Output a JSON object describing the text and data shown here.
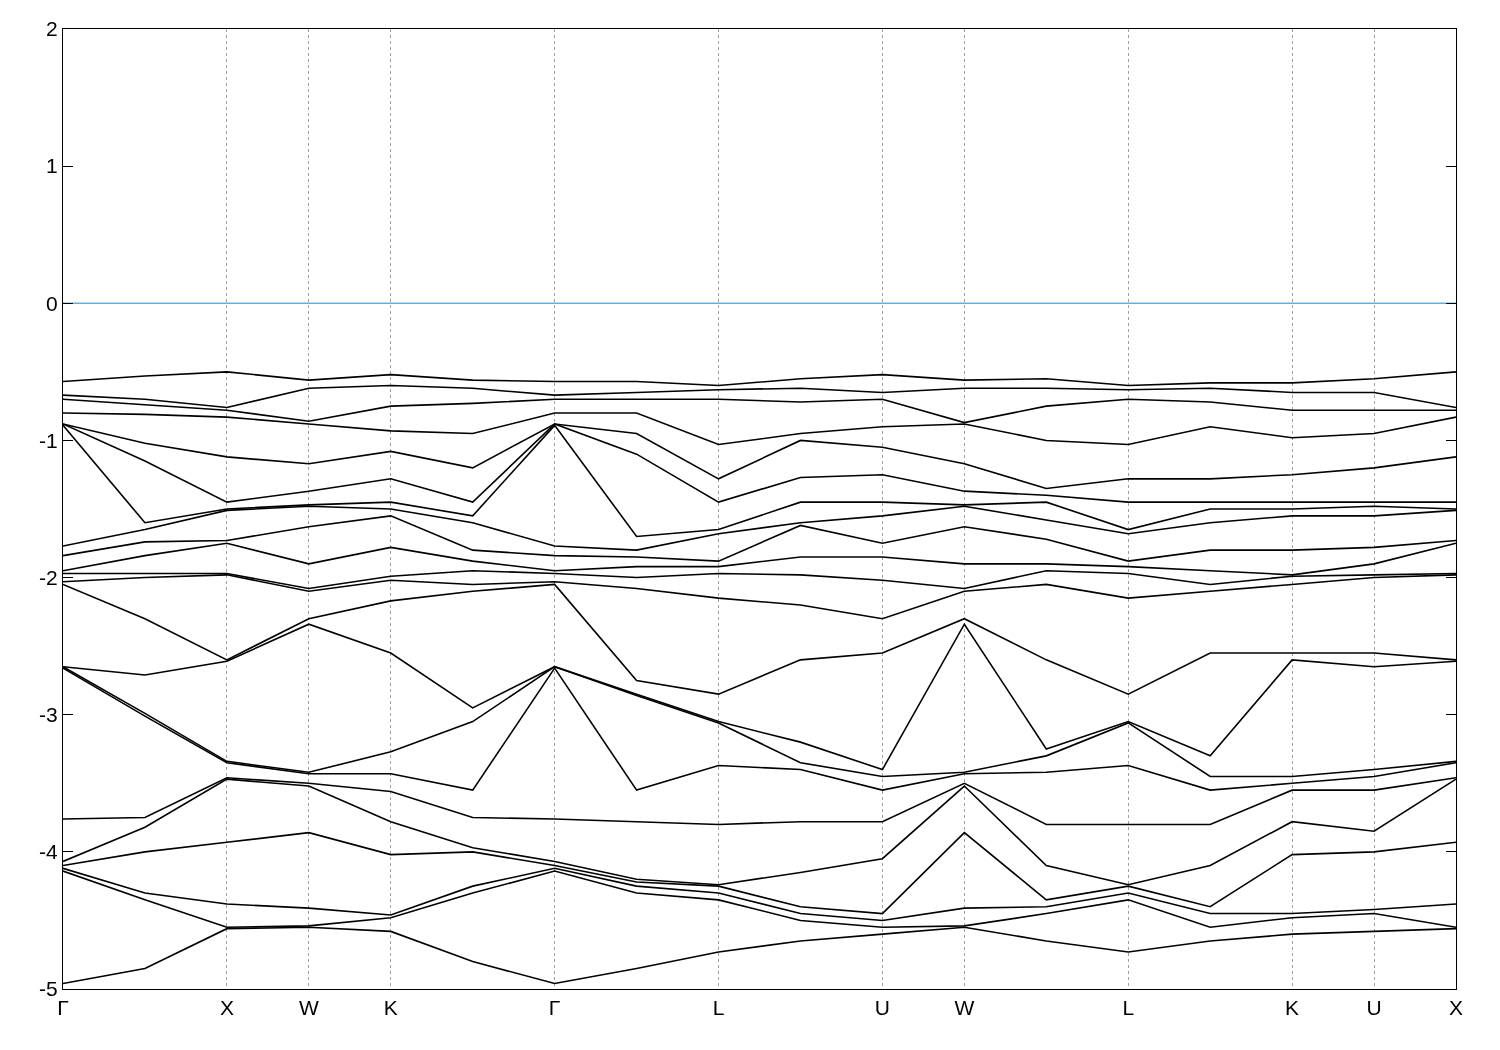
{
  "chart_data": {
    "type": "line",
    "categories": [
      "Γ",
      null,
      "X",
      "W",
      "K",
      null,
      "Γ",
      null,
      "L",
      null,
      "U",
      "W",
      null,
      "L",
      null,
      "K",
      "U",
      "X"
    ],
    "ylim": [
      -5,
      2
    ],
    "yticks": [
      -5,
      -4,
      -3,
      -2,
      -1,
      0,
      1,
      2
    ],
    "grid": "x",
    "marker": "none",
    "line_style": "solid",
    "ref_lines": [
      {
        "axis": "y",
        "value": 0,
        "color": "#56b4e9"
      }
    ],
    "series": [
      {
        "color": "#000000",
        "values": [
          -0.57,
          -0.53,
          -0.5,
          -0.56,
          -0.52,
          -0.56,
          -0.57,
          -0.57,
          -0.6,
          -0.55,
          -0.52,
          -0.56,
          -0.55,
          -0.6,
          -0.58,
          -0.58,
          -0.55,
          -0.5
        ]
      },
      {
        "color": "#000000",
        "values": [
          -0.67,
          -0.7,
          -0.76,
          -0.62,
          -0.6,
          -0.62,
          -0.67,
          -0.65,
          -0.63,
          -0.62,
          -0.65,
          -0.62,
          -0.62,
          -0.63,
          -0.62,
          -0.65,
          -0.65,
          -0.76
        ]
      },
      {
        "color": "#000000",
        "values": [
          -0.7,
          -0.74,
          -0.78,
          -0.86,
          -0.75,
          -0.73,
          -0.7,
          -0.7,
          -0.7,
          -0.72,
          -0.7,
          -0.87,
          -0.75,
          -0.7,
          -0.72,
          -0.78,
          -0.78,
          -0.78
        ]
      },
      {
        "color": "#000000",
        "values": [
          -0.8,
          -0.81,
          -0.83,
          -0.88,
          -0.93,
          -0.95,
          -0.8,
          -0.8,
          -1.03,
          -0.95,
          -0.9,
          -0.88,
          -1.0,
          -1.03,
          -0.9,
          -0.98,
          -0.95,
          -0.83
        ]
      },
      {
        "color": "#000000",
        "values": [
          -0.88,
          -1.02,
          -1.12,
          -1.17,
          -1.08,
          -1.2,
          -0.88,
          -0.95,
          -1.28,
          -1.0,
          -1.05,
          -1.17,
          -1.35,
          -1.28,
          -1.28,
          -1.25,
          -1.2,
          -1.12
        ]
      },
      {
        "color": "#000000",
        "values": [
          -0.88,
          -1.15,
          -1.45,
          -1.37,
          -1.28,
          -1.45,
          -0.88,
          -1.1,
          -1.45,
          -1.27,
          -1.25,
          -1.37,
          -1.4,
          -1.45,
          -1.45,
          -1.45,
          -1.45,
          -1.45
        ]
      },
      {
        "color": "#000000",
        "values": [
          -0.89,
          -1.6,
          -1.5,
          -1.47,
          -1.45,
          -1.55,
          -0.89,
          -1.7,
          -1.65,
          -1.45,
          -1.45,
          -1.47,
          -1.45,
          -1.65,
          -1.5,
          -1.5,
          -1.48,
          -1.5
        ]
      },
      {
        "color": "#000000",
        "values": [
          -1.77,
          -1.65,
          -1.51,
          -1.48,
          -1.5,
          -1.6,
          -1.77,
          -1.8,
          -1.68,
          -1.6,
          -1.55,
          -1.48,
          -1.58,
          -1.68,
          -1.6,
          -1.55,
          -1.55,
          -1.51
        ]
      },
      {
        "color": "#000000",
        "values": [
          -1.84,
          -1.74,
          -1.73,
          -1.63,
          -1.55,
          -1.8,
          -1.84,
          -1.85,
          -1.88,
          -1.62,
          -1.75,
          -1.63,
          -1.72,
          -1.88,
          -1.8,
          -1.8,
          -1.78,
          -1.73
        ]
      },
      {
        "color": "#000000",
        "values": [
          -1.95,
          -1.84,
          -1.75,
          -1.9,
          -1.78,
          -1.88,
          -1.95,
          -1.92,
          -1.92,
          -1.85,
          -1.85,
          -1.9,
          -1.9,
          -1.92,
          -1.95,
          -1.98,
          -1.9,
          -1.75
        ]
      },
      {
        "color": "#000000",
        "values": [
          -1.97,
          -1.97,
          -1.97,
          -2.08,
          -1.99,
          -1.95,
          -1.97,
          -2.0,
          -1.97,
          -1.98,
          -2.02,
          -2.08,
          -1.95,
          -1.97,
          -2.05,
          -1.99,
          -1.98,
          -1.97
        ]
      },
      {
        "color": "#000000",
        "values": [
          -2.03,
          -2.0,
          -1.98,
          -2.1,
          -2.02,
          -2.05,
          -2.03,
          -2.08,
          -2.15,
          -2.2,
          -2.3,
          -2.1,
          -2.05,
          -2.15,
          -2.1,
          -2.05,
          -2.0,
          -1.98
        ]
      },
      {
        "color": "#000000",
        "values": [
          -2.05,
          -2.3,
          -2.6,
          -2.3,
          -2.17,
          -2.1,
          -2.05,
          -2.75,
          -2.85,
          -2.6,
          -2.55,
          -2.3,
          -2.6,
          -2.85,
          -2.55,
          -2.55,
          -2.55,
          -2.6
        ]
      },
      {
        "color": "#000000",
        "values": [
          -2.65,
          -2.71,
          -2.61,
          -2.34,
          -2.55,
          -2.95,
          -2.65,
          -2.85,
          -3.05,
          -3.2,
          -3.4,
          -2.34,
          -3.25,
          -3.05,
          -3.3,
          -2.6,
          -2.65,
          -2.61
        ]
      },
      {
        "color": "#000000",
        "values": [
          -2.65,
          -2.99,
          -3.34,
          -3.42,
          -3.27,
          -3.05,
          -2.65,
          -2.86,
          -3.06,
          -3.35,
          -3.45,
          -3.42,
          -3.3,
          -3.06,
          -3.45,
          -3.45,
          -3.4,
          -3.34
        ]
      },
      {
        "color": "#000000",
        "values": [
          -2.66,
          -3.01,
          -3.35,
          -3.43,
          -3.43,
          -3.55,
          -2.66,
          -3.55,
          -3.37,
          -3.4,
          -3.55,
          -3.43,
          -3.42,
          -3.37,
          -3.55,
          -3.5,
          -3.45,
          -3.35
        ]
      },
      {
        "color": "#000000",
        "values": [
          -3.76,
          -3.75,
          -3.46,
          -3.5,
          -3.56,
          -3.75,
          -3.76,
          -3.78,
          -3.8,
          -3.78,
          -3.78,
          -3.5,
          -3.8,
          -3.8,
          -3.8,
          -3.55,
          -3.55,
          -3.46
        ]
      },
      {
        "color": "#000000",
        "values": [
          -4.07,
          -3.82,
          -3.47,
          -3.52,
          -3.78,
          -3.97,
          -4.07,
          -4.2,
          -4.24,
          -4.15,
          -4.05,
          -3.52,
          -4.1,
          -4.24,
          -4.1,
          -3.78,
          -3.85,
          -3.47
        ]
      },
      {
        "color": "#000000",
        "values": [
          -4.1,
          -4.0,
          -3.93,
          -3.86,
          -4.02,
          -4.0,
          -4.1,
          -4.22,
          -4.25,
          -4.4,
          -4.45,
          -3.86,
          -4.35,
          -4.25,
          -4.4,
          -4.02,
          -4.0,
          -3.93
        ]
      },
      {
        "color": "#000000",
        "values": [
          -4.12,
          -4.3,
          -4.38,
          -4.41,
          -4.46,
          -4.25,
          -4.12,
          -4.25,
          -4.3,
          -4.45,
          -4.5,
          -4.41,
          -4.4,
          -4.3,
          -4.45,
          -4.45,
          -4.42,
          -4.38
        ]
      },
      {
        "color": "#000000",
        "values": [
          -4.14,
          -4.35,
          -4.55,
          -4.54,
          -4.48,
          -4.3,
          -4.14,
          -4.3,
          -4.35,
          -4.5,
          -4.55,
          -4.54,
          -4.45,
          -4.35,
          -4.55,
          -4.48,
          -4.45,
          -4.55
        ]
      },
      {
        "color": "#000000",
        "values": [
          -4.96,
          -4.85,
          -4.56,
          -4.55,
          -4.58,
          -4.8,
          -4.96,
          -4.85,
          -4.73,
          -4.65,
          -4.6,
          -4.55,
          -4.65,
          -4.73,
          -4.65,
          -4.6,
          -4.58,
          -4.56
        ]
      }
    ]
  }
}
